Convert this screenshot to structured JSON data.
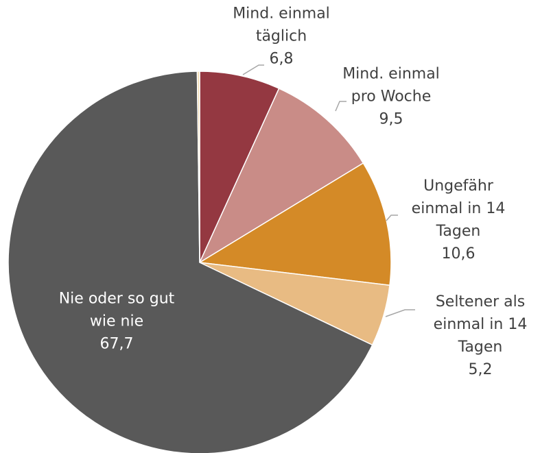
{
  "chart_data": {
    "type": "pie",
    "categories": [
      "Mind. einmal täglich",
      "Mind. einmal pro Woche",
      "Ungefähr einmal in 14 Tagen",
      "Seltener als einmal in 14 Tagen",
      "Nie oder so gut wie nie",
      null
    ],
    "values": [
      6.8,
      9.5,
      10.6,
      5.2,
      67.7,
      0.2
    ],
    "value_labels": [
      "6,8",
      "9,5",
      "10,6",
      "5,2",
      "67,7",
      null
    ],
    "colors": [
      "#943841",
      "#c98c87",
      "#d48a27",
      "#e8bb83",
      "#595959",
      "#f2dcb0"
    ]
  }
}
